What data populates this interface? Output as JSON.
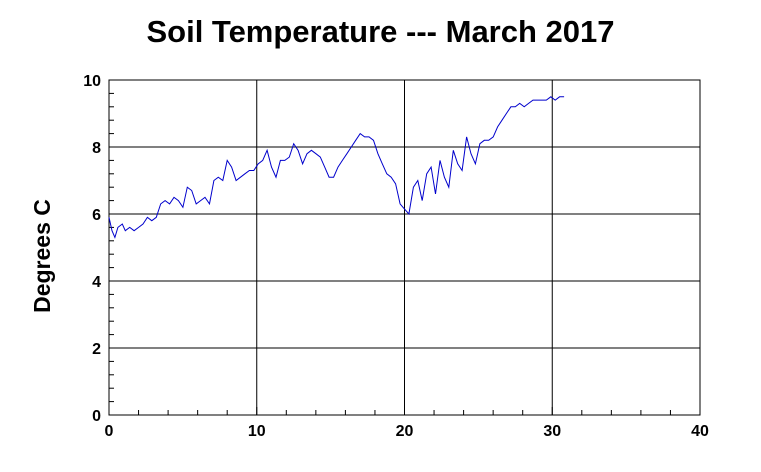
{
  "chart_data": {
    "type": "line",
    "title": "Soil Temperature --- March 2017",
    "xlabel": "",
    "ylabel": "Degrees C",
    "xlim": [
      0,
      40
    ],
    "ylim": [
      0,
      10
    ],
    "x_ticks": [
      0,
      10,
      20,
      30,
      40
    ],
    "y_ticks": [
      0,
      2,
      4,
      6,
      8,
      10
    ],
    "grid": true,
    "legend": "none",
    "line_color": "#0000cc",
    "series": [
      {
        "x": [
          0.0,
          0.2,
          0.4,
          0.6,
          0.9,
          1.1,
          1.4,
          1.7,
          2.0,
          2.3,
          2.6,
          2.9,
          3.2,
          3.5,
          3.8,
          4.1,
          4.4,
          4.7,
          5.0,
          5.3,
          5.6,
          5.9,
          6.2,
          6.5,
          6.8,
          7.1,
          7.4,
          7.7,
          8.0,
          8.3,
          8.6,
          8.9,
          9.2,
          9.5,
          9.8,
          10.1,
          10.4,
          10.7,
          11.0,
          11.3,
          11.6,
          11.9,
          12.2,
          12.5,
          12.8,
          13.1,
          13.4,
          13.7,
          14.0,
          14.3,
          14.6,
          14.9,
          15.2,
          15.5,
          15.8,
          16.1,
          16.4,
          16.7,
          17.0,
          17.3,
          17.6,
          17.9,
          18.2,
          18.5,
          18.8,
          19.1,
          19.4,
          19.7,
          19.9,
          20.1,
          20.3,
          20.6,
          20.9,
          21.2,
          21.5,
          21.8,
          22.1,
          22.4,
          22.7,
          23.0,
          23.3,
          23.6,
          23.9,
          24.2,
          24.5,
          24.8,
          25.1,
          25.4,
          25.7,
          26.0,
          26.3,
          26.6,
          26.9,
          27.2,
          27.5,
          27.8,
          28.1,
          28.4,
          28.7,
          29.0,
          29.3,
          29.6,
          29.9,
          30.2,
          30.5,
          30.8
        ],
        "y": [
          5.9,
          5.5,
          5.3,
          5.6,
          5.7,
          5.5,
          5.6,
          5.5,
          5.6,
          5.7,
          5.9,
          5.8,
          5.9,
          6.3,
          6.4,
          6.3,
          6.5,
          6.4,
          6.2,
          6.8,
          6.7,
          6.3,
          6.4,
          6.5,
          6.3,
          7.0,
          7.1,
          7.0,
          7.6,
          7.4,
          7.0,
          7.1,
          7.2,
          7.3,
          7.3,
          7.5,
          7.6,
          7.9,
          7.4,
          7.1,
          7.6,
          7.6,
          7.7,
          8.1,
          7.9,
          7.5,
          7.8,
          7.9,
          7.8,
          7.7,
          7.4,
          7.1,
          7.1,
          7.4,
          7.6,
          7.8,
          8.0,
          8.2,
          8.4,
          8.3,
          8.3,
          8.2,
          7.8,
          7.5,
          7.2,
          7.1,
          6.9,
          6.3,
          6.2,
          6.1,
          6.0,
          6.8,
          7.0,
          6.4,
          7.2,
          7.4,
          6.6,
          7.6,
          7.1,
          6.8,
          7.9,
          7.5,
          7.3,
          8.3,
          7.8,
          7.5,
          8.1,
          8.2,
          8.2,
          8.3,
          8.6,
          8.8,
          9.0,
          9.2,
          9.2,
          9.3,
          9.2,
          9.3,
          9.4,
          9.4,
          9.4,
          9.4,
          9.5,
          9.4,
          9.5,
          9.5
        ]
      }
    ]
  }
}
